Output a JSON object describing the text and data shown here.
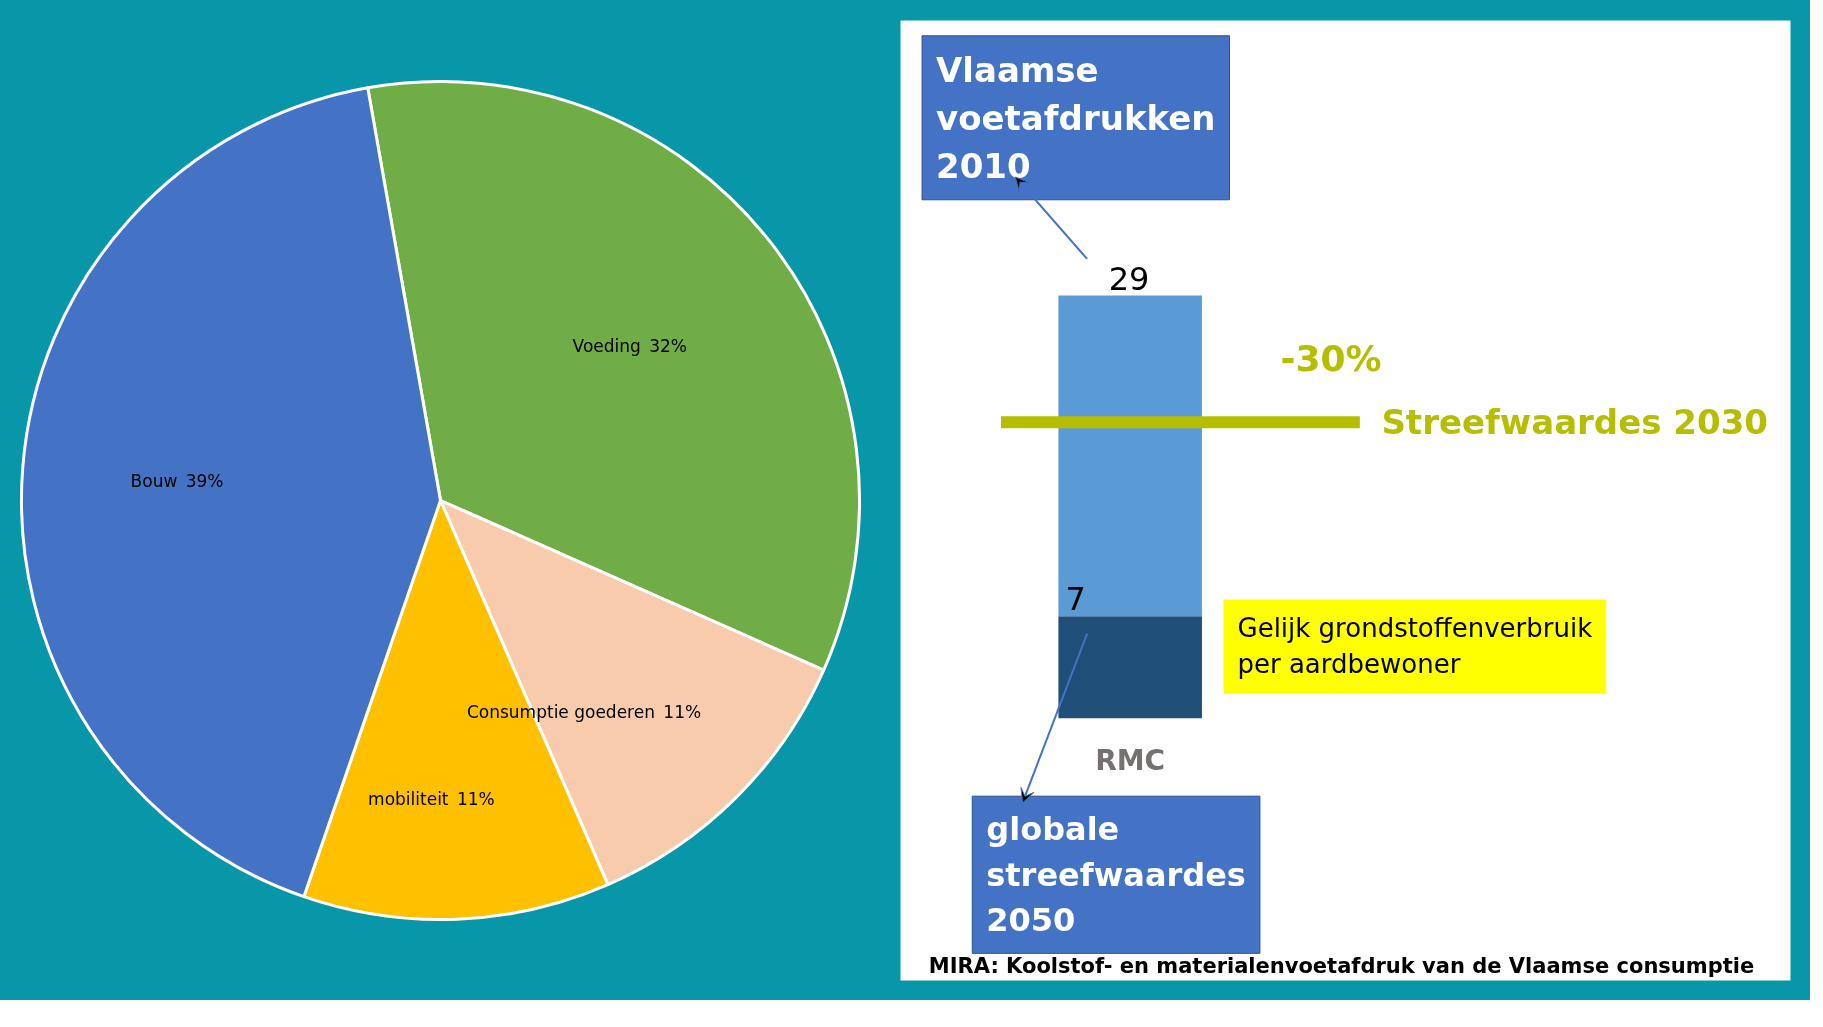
{
  "chart_data": [
    {
      "type": "pie",
      "categories": [
        "Voeding",
        "Consumptie goederen",
        "mobiliteit",
        "Bouw"
      ],
      "values": [
        32,
        11,
        11,
        39
      ],
      "colors": [
        "#70ad47",
        "#f8cbad",
        "#ffc000",
        "#4472c4"
      ],
      "value_labels": [
        "32%",
        "11%",
        "11%",
        "39%"
      ]
    },
    {
      "type": "bar",
      "stacked": true,
      "categories": [
        "RMC"
      ],
      "series": [
        {
          "color": "#1f4e79",
          "values": [
            7
          ],
          "value_labels": [
            "7"
          ]
        },
        {
          "color": "#5b9bd5",
          "values": [
            22
          ]
        }
      ],
      "totals": [
        "29"
      ],
      "ref_lines": [
        {
          "axis": "y",
          "value": 20.3,
          "label": "Streefwaardes 2030",
          "color": "#b5be00"
        }
      ],
      "annotations": [
        "Vlaamse\nvoetafdrukken\n2010",
        "-30%",
        "globale\nstreefwaardes\n2050",
        "Gelijk grondstoffenverbruik\nper aardbewoner",
        "MIRA: Koolstof- en materialenvoetafdruk van de Vlaamse consumptie"
      ]
    }
  ]
}
